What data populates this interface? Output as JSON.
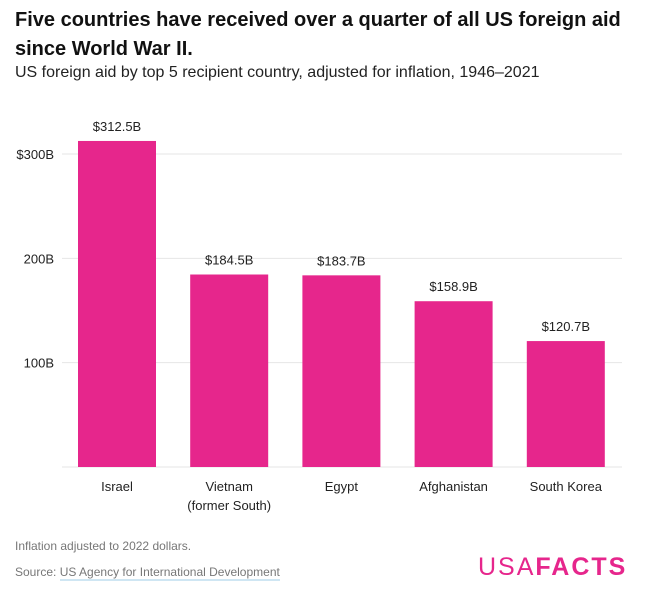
{
  "title": "Five countries have received over a quarter of all US foreign aid since World War II.",
  "subtitle": "US foreign aid by top 5 recipient country, adjusted for inflation, 1946–2021",
  "note": "Inflation adjusted to 2022 dollars.",
  "source_label": "Source: ",
  "source_link": "US Agency for International Development",
  "logo": {
    "light": "USA",
    "bold": "FACTS"
  },
  "colors": {
    "bar": "#e6268c",
    "grid": "#e6e6e6"
  },
  "chart_data": {
    "type": "bar",
    "categories": [
      [
        "Israel"
      ],
      [
        "Vietnam",
        "(former South)"
      ],
      [
        "Egypt"
      ],
      [
        "Afghanistan"
      ],
      [
        "South Korea"
      ]
    ],
    "values": [
      312.5,
      184.5,
      183.7,
      158.9,
      120.7
    ],
    "data_labels": [
      "$312.5B",
      "$184.5B",
      "$183.7B",
      "$158.9B",
      "$120.7B"
    ],
    "ylim": [
      0,
      312.5
    ],
    "yticks": [
      100,
      200,
      300
    ],
    "ytick_labels": [
      "100B",
      "200B",
      "$300B"
    ],
    "grid": true,
    "unit": "billion USD"
  }
}
